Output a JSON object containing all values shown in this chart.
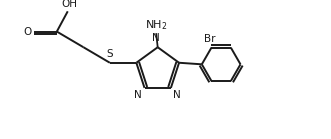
{
  "bg_color": "#ffffff",
  "bond_color": "#1a1a1a",
  "line_width": 1.4,
  "fig_width": 3.31,
  "fig_height": 1.39,
  "dpi": 100,
  "xlim": [
    0,
    10.5
  ],
  "ylim": [
    0,
    4.2
  ]
}
